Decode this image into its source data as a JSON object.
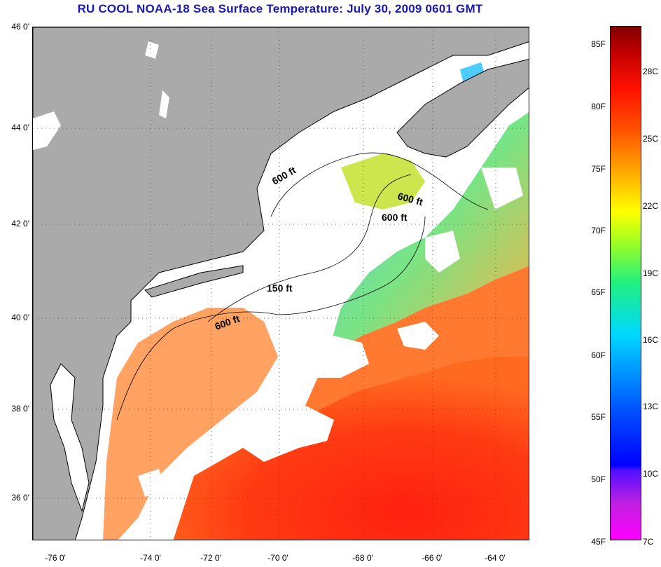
{
  "title": "RU COOL  NOAA-18  Sea Surface Temperature:  July 30, 2009 0601 GMT",
  "map": {
    "lat_labels": [
      "46 0'",
      "44 0'",
      "42 0'",
      "40 0'",
      "38 0'",
      "36 0'"
    ],
    "lon_labels": [
      "-76 0'",
      "-74 0'",
      "-72 0'",
      "-70 0'",
      "-68 0'",
      "-66 0'",
      "-64 0'"
    ],
    "depth_contour_labels": [
      "600 ft",
      "600 ft",
      "600 ft",
      "150 ft",
      "600 ft"
    ]
  },
  "colorbar": {
    "fahrenheit_labels": [
      "85F",
      "80F",
      "75F",
      "70F",
      "65F",
      "60F",
      "55F",
      "50F",
      "45F"
    ],
    "celsius_labels": [
      "28C",
      "25C",
      "22C",
      "19C",
      "16C",
      "13C",
      "10C",
      "7C"
    ]
  },
  "colors": {
    "title": "#1a1ab0",
    "land": "#aaaaaa",
    "cloud": "#ffffff",
    "warm_water": "#ff3010",
    "cool_water": "#20c0ff"
  }
}
